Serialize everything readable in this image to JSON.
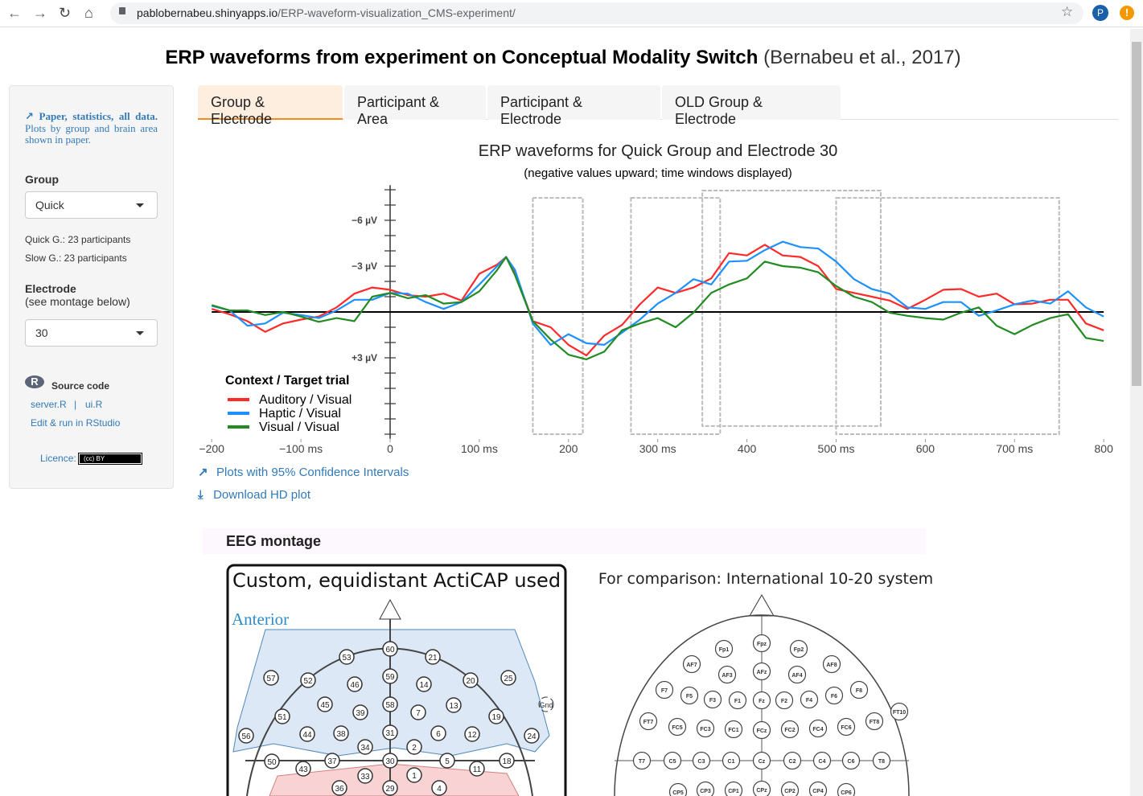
{
  "browser": {
    "url_host": "pablobernabeu.shinyapps.io",
    "url_path": "/ERP-waveform-visualization_CMS-experiment/",
    "profile_initial": "P",
    "icons": [
      "back-icon",
      "forward-icon",
      "reload-icon",
      "home-icon",
      "lock-icon",
      "star-icon",
      "alert-icon"
    ]
  },
  "page": {
    "title_bold": "ERP waveforms from experiment on Conceptual Modality Switch",
    "title_cite": "(Bernabeu et al., 2017)"
  },
  "sidebar": {
    "paper_link_bold": "Paper, statistics, all data.",
    "paper_link_rest": "Plots by group and brain area shown in paper.",
    "group_label": "Group",
    "group_value": "Quick",
    "quick_info": "Quick G.: 23 participants",
    "slow_info": "Slow G.: 23 participants",
    "electrode_label": "Electrode",
    "electrode_hint": "(see montage below)",
    "electrode_value": "30",
    "source_label": "Source code",
    "server_link": "server.R",
    "sep": "|",
    "ui_link": "ui.R",
    "rstudio_link": "Edit & run in RStudio",
    "licence_label": "Licence:",
    "licence_badge": "(cc) BY"
  },
  "tabs": [
    {
      "label": "Group & Electrode",
      "active": true
    },
    {
      "label": "Participant & Area"
    },
    {
      "label": "Participant & Electrode"
    },
    {
      "label": "OLD Group & Electrode"
    }
  ],
  "chart_data": {
    "type": "line",
    "title": "ERP waveforms for Quick Group and Electrode 30",
    "subtitle": "(negative values upward; time windows displayed)",
    "xlim": [
      -200,
      800
    ],
    "ylim": [
      -8.3,
      8.3
    ],
    "y_inverted": true,
    "x_tick_labels": [
      {
        "v": -200,
        "t": "−200"
      },
      {
        "v": -100,
        "t": "−100 ms"
      },
      {
        "v": 0,
        "t": "0"
      },
      {
        "v": 100,
        "t": "100 ms"
      },
      {
        "v": 200,
        "t": "200"
      },
      {
        "v": 300,
        "t": "300 ms"
      },
      {
        "v": 400,
        "t": "400"
      },
      {
        "v": 500,
        "t": "500 ms"
      },
      {
        "v": 600,
        "t": "600"
      },
      {
        "v": 700,
        "t": "700 ms"
      },
      {
        "v": 800,
        "t": "800"
      }
    ],
    "y_tick_labels": [
      {
        "v": -6,
        "t": "−6 µV"
      },
      {
        "v": -3,
        "t": "−3 µV"
      },
      {
        "v": 3,
        "t": "+3 µV"
      }
    ],
    "time_windows_ms": [
      [
        160,
        216
      ],
      [
        270,
        370
      ],
      [
        350,
        550
      ],
      [
        500,
        750
      ]
    ],
    "legend_title": "Context / Target trial",
    "legend_placement": "bottom-left",
    "x": [
      -200,
      -180,
      -160,
      -140,
      -120,
      -100,
      -80,
      -60,
      -40,
      -20,
      0,
      20,
      40,
      60,
      80,
      100,
      120,
      130,
      140,
      160,
      180,
      200,
      220,
      240,
      260,
      280,
      300,
      320,
      340,
      360,
      380,
      400,
      420,
      440,
      460,
      480,
      500,
      520,
      540,
      560,
      580,
      600,
      620,
      640,
      660,
      680,
      700,
      720,
      740,
      760,
      780,
      800
    ],
    "series": [
      {
        "name": "Auditory / Visual",
        "color": "#ff2a2a",
        "values": [
          -0.2,
          0.15,
          0.6,
          1.3,
          0.75,
          0.5,
          0.3,
          -0.3,
          -1.2,
          -1.6,
          -1.45,
          -1.1,
          -1.0,
          -1.2,
          -0.75,
          -2.5,
          -3.1,
          -3.6,
          -2.6,
          0.6,
          1.0,
          2.15,
          2.85,
          1.55,
          0.85,
          -0.5,
          -1.6,
          -1.25,
          -1.6,
          -2.2,
          -3.85,
          -3.7,
          -4.4,
          -3.7,
          -3.6,
          -3.0,
          -1.5,
          -1.25,
          -1.0,
          -0.75,
          -0.2,
          -0.8,
          -1.45,
          -1.5,
          -1.0,
          -1.2,
          -0.5,
          -0.55,
          -0.8,
          -0.8,
          0.75,
          1.2
        ]
      },
      {
        "name": "Haptic / Visual",
        "color": "#1e90ff",
        "values": [
          -0.4,
          -0.1,
          0.9,
          0.75,
          0.05,
          0.2,
          0.4,
          -0.1,
          -0.8,
          -0.8,
          -1.25,
          -1.2,
          -0.65,
          -0.2,
          -0.65,
          -1.8,
          -3.0,
          -3.6,
          -2.75,
          0.75,
          2.15,
          1.45,
          2.05,
          2.15,
          1.35,
          0.5,
          -0.55,
          -1.25,
          -2.15,
          -1.8,
          -3.3,
          -3.35,
          -4.05,
          -4.6,
          -4.25,
          -4.15,
          -3.3,
          -2.15,
          -1.5,
          -1.2,
          -0.3,
          -0.2,
          -0.65,
          -0.65,
          0.25,
          -0.1,
          -0.5,
          -0.75,
          -0.55,
          -1.35,
          -0.3,
          0.3
        ]
      },
      {
        "name": "Visual / Visual",
        "color": "#228b22",
        "values": [
          -0.45,
          -0.1,
          -0.1,
          0.2,
          0.0,
          0.3,
          0.65,
          0.4,
          0.6,
          -1.0,
          -1.25,
          -0.9,
          -1.1,
          -0.55,
          -0.65,
          -1.35,
          -2.75,
          -3.6,
          -2.4,
          0.6,
          1.8,
          2.8,
          3.1,
          2.6,
          1.2,
          0.75,
          0.4,
          1.0,
          0.05,
          -1.25,
          -1.8,
          -2.2,
          -3.3,
          -3.0,
          -2.9,
          -2.6,
          -1.7,
          -1.0,
          -0.65,
          0.05,
          0.25,
          0.4,
          0.5,
          0.05,
          -0.3,
          0.9,
          1.45,
          0.85,
          0.4,
          0.15,
          1.7,
          1.9
        ]
      }
    ]
  },
  "links": {
    "ci_plots": "Plots with 95% Confidence Intervals",
    "download": "Download HD plot"
  },
  "montage": {
    "heading": "EEG montage",
    "custom_title": "Custom, equidistant ActiCAP used",
    "anterior_label": "Anterior",
    "gnd_label": "Gnd",
    "custom_electrodes": [
      "60",
      "53",
      "21",
      "57",
      "52",
      "46",
      "59",
      "14",
      "20",
      "25",
      "45",
      "39",
      "58",
      "7",
      "13",
      "19",
      "51",
      "56",
      "44",
      "38",
      "31",
      "6",
      "12",
      "24",
      "34",
      "2",
      "50",
      "43",
      "37",
      "30",
      "5",
      "11",
      "18",
      "33",
      "1",
      "36",
      "29",
      "4"
    ],
    "comparison_title": "For comparison: International 10-20 system",
    "system_electrodes": [
      "Fpz",
      "Fp1",
      "Fp2",
      "AF7",
      "AF8",
      "AF3",
      "AFz",
      "AF4",
      "F7",
      "F5",
      "F3",
      "F1",
      "Fz",
      "F2",
      "F4",
      "F6",
      "F8",
      "FT7",
      "FC5",
      "FC3",
      "FC1",
      "FCz",
      "FC2",
      "FC4",
      "FC6",
      "FT8",
      "FT10",
      "T7",
      "C5",
      "C3",
      "C1",
      "Cz",
      "C2",
      "C4",
      "C6",
      "T8",
      "CP5",
      "CP3",
      "CP1",
      "CPz",
      "CP2",
      "CP4",
      "CP6"
    ],
    "colors": {
      "anterior_region": "#dce8f5",
      "posterior_region": "#f9d3d3",
      "anterior_text": "#2e8bc9"
    }
  },
  "colors": {
    "link": "#337ab7",
    "tab_active_bg": "#fdeee0",
    "tab_active_border": "#f28c1f",
    "profile": "#1a5fa8",
    "alert": "#f29900"
  }
}
